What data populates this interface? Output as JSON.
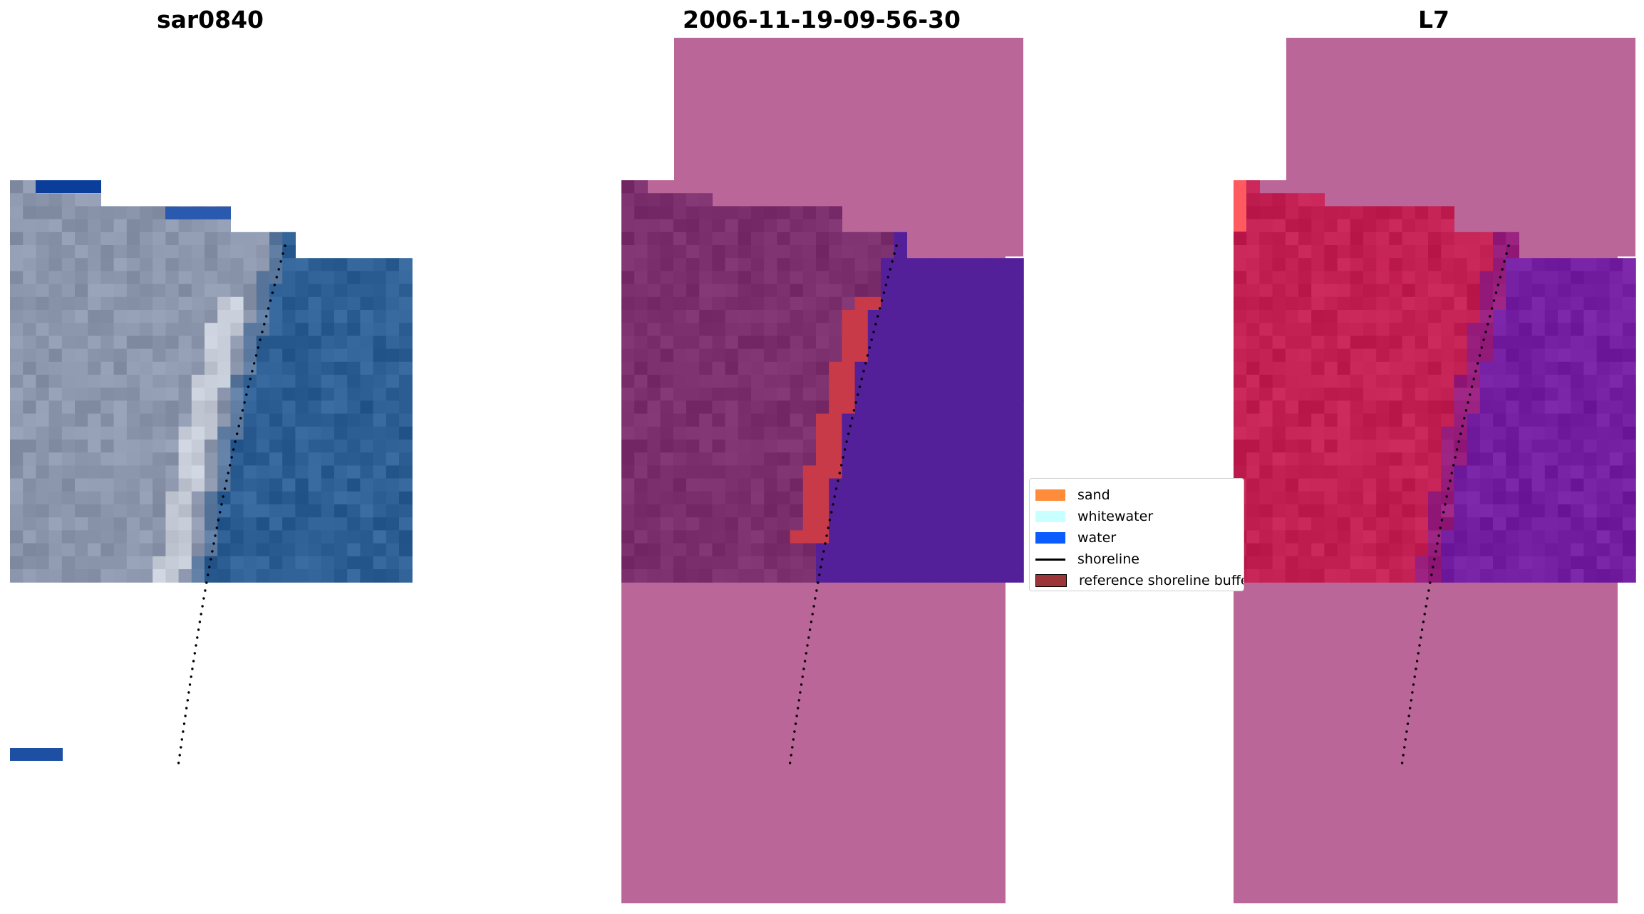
{
  "panels": [
    {
      "title": "sar0840"
    },
    {
      "title": "2006-11-19-09-56-30"
    },
    {
      "title": "L7"
    }
  ],
  "legend": {
    "items": [
      {
        "label": "sand",
        "color": "#ff8c3a",
        "kind": "patch"
      },
      {
        "label": "whitewater",
        "color": "#c8ffff",
        "kind": "patch"
      },
      {
        "label": "water",
        "color": "#0a5cff",
        "kind": "patch"
      },
      {
        "label": "shoreline",
        "color": "#000000",
        "kind": "line"
      },
      {
        "label": "reference shoreline buffer",
        "color": "#9b3538",
        "kind": "patch"
      }
    ]
  },
  "colors": {
    "nodata_mask": "#bb6698",
    "rgb_land": "#8b96ad",
    "rgb_water": "#2e5f94",
    "class_land": "#7c2f6d",
    "class_water": "#54209a",
    "buffer_overlay": "#c83a48",
    "mndwi_land": "#c21f52",
    "mndwi_water": "#731ea0"
  }
}
